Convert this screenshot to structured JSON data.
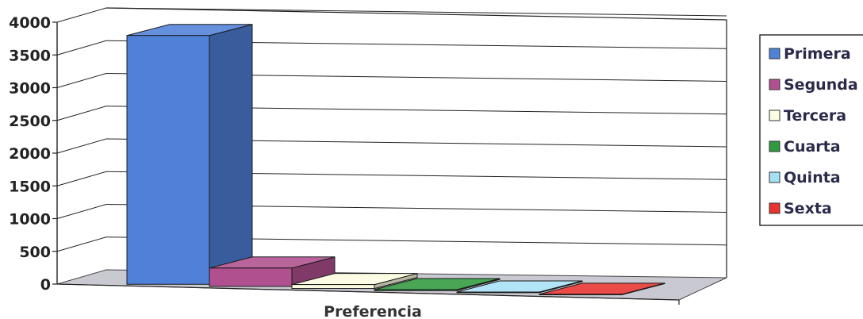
{
  "chart_data": {
    "type": "bar",
    "title": "",
    "xlabel": "Preferencia",
    "ylabel": "",
    "ylim": [
      0,
      4000
    ],
    "yticks": [
      0,
      500,
      1000,
      1500,
      2000,
      2500,
      3000,
      3500,
      4000
    ],
    "grid": true,
    "legend_position": "right",
    "categories": [
      "Preferencia"
    ],
    "series": [
      {
        "name": "Primera",
        "values": [
          3800
        ],
        "color": "#4f81d9"
      },
      {
        "name": "Segunda",
        "values": [
          280
        ],
        "color": "#b0508f"
      },
      {
        "name": "Tercera",
        "values": [
          60
        ],
        "color": "#fcfce0"
      },
      {
        "name": "Cuarta",
        "values": [
          15
        ],
        "color": "#2f9a3e"
      },
      {
        "name": "Quinta",
        "values": [
          10
        ],
        "color": "#a6e0f5"
      },
      {
        "name": "Sexta",
        "values": [
          8
        ],
        "color": "#e8332e"
      }
    ]
  }
}
